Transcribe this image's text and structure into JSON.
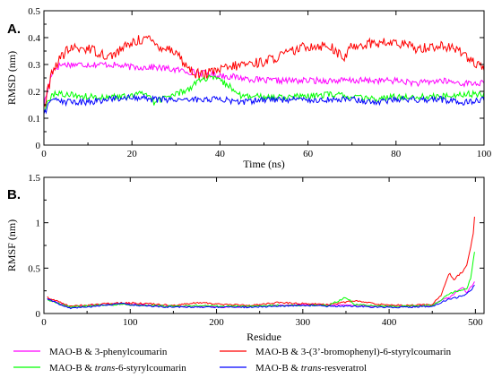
{
  "chart_data": [
    {
      "type": "line",
      "panel_label": "A.",
      "xlabel": "Time (ns)",
      "ylabel": "RMSD (nm)",
      "xlim": [
        0,
        100
      ],
      "ylim": [
        0,
        0.5
      ],
      "xticks": [
        0,
        20,
        40,
        60,
        80,
        100
      ],
      "yticks": [
        0,
        0.1,
        0.2,
        0.3,
        0.4,
        0.5
      ],
      "xtick_labels": [
        "0",
        "20",
        "40",
        "60",
        "80",
        "100"
      ],
      "ytick_labels": [
        "0",
        "0.1",
        "0.2",
        "0.3",
        "0.4",
        "0.5"
      ],
      "series": [
        {
          "name": "MAO-B & 3-phenylcoumarin",
          "color": "#ff00ff",
          "x": [
            0,
            2,
            4,
            6,
            10,
            15,
            20,
            25,
            30,
            35,
            40,
            45,
            50,
            55,
            60,
            65,
            70,
            75,
            80,
            85,
            90,
            95,
            100
          ],
          "y": [
            0.15,
            0.28,
            0.3,
            0.3,
            0.3,
            0.3,
            0.29,
            0.29,
            0.28,
            0.27,
            0.26,
            0.25,
            0.24,
            0.24,
            0.24,
            0.24,
            0.24,
            0.24,
            0.24,
            0.23,
            0.24,
            0.23,
            0.23
          ]
        },
        {
          "name": "MAO-B & 3-(3'-bromophenyl)-6-styrylcoumarin",
          "color": "#ff0000",
          "x": [
            0,
            2,
            4,
            6,
            10,
            15,
            20,
            23,
            26,
            30,
            32,
            34,
            36,
            40,
            45,
            50,
            55,
            60,
            65,
            68,
            70,
            75,
            80,
            85,
            90,
            95,
            98,
            100
          ],
          "y": [
            0.14,
            0.28,
            0.33,
            0.36,
            0.36,
            0.33,
            0.38,
            0.4,
            0.37,
            0.35,
            0.3,
            0.27,
            0.26,
            0.28,
            0.3,
            0.31,
            0.34,
            0.37,
            0.37,
            0.32,
            0.37,
            0.38,
            0.38,
            0.36,
            0.37,
            0.35,
            0.3,
            0.28
          ]
        },
        {
          "name": "MAO-B & trans-6-styrylcoumarin",
          "color": "#00ff00",
          "x": [
            0,
            2,
            5,
            10,
            15,
            20,
            23,
            25,
            28,
            30,
            33,
            35,
            38,
            40,
            43,
            45,
            50,
            55,
            60,
            65,
            70,
            75,
            80,
            85,
            90,
            95,
            100
          ],
          "y": [
            0.13,
            0.19,
            0.19,
            0.18,
            0.18,
            0.18,
            0.2,
            0.16,
            0.18,
            0.19,
            0.21,
            0.24,
            0.25,
            0.24,
            0.21,
            0.18,
            0.18,
            0.18,
            0.18,
            0.19,
            0.18,
            0.17,
            0.18,
            0.18,
            0.18,
            0.19,
            0.19
          ]
        },
        {
          "name": "MAO-B & trans-resveratrol",
          "color": "#0000ff",
          "x": [
            0,
            2,
            5,
            10,
            15,
            20,
            25,
            30,
            35,
            40,
            45,
            50,
            55,
            60,
            65,
            70,
            75,
            80,
            85,
            90,
            95,
            100
          ],
          "y": [
            0.12,
            0.17,
            0.16,
            0.16,
            0.17,
            0.18,
            0.17,
            0.17,
            0.17,
            0.17,
            0.16,
            0.17,
            0.17,
            0.17,
            0.17,
            0.17,
            0.16,
            0.17,
            0.17,
            0.17,
            0.16,
            0.17
          ]
        }
      ]
    },
    {
      "type": "line",
      "panel_label": "B.",
      "xlabel": "Residue",
      "ylabel": "RMSF (nm)",
      "xlim": [
        0,
        510
      ],
      "ylim": [
        0,
        1.5
      ],
      "xticks": [
        0,
        100,
        200,
        300,
        400,
        500
      ],
      "yticks": [
        0,
        0.5,
        1,
        1.5
      ],
      "xtick_labels": [
        "0",
        "100",
        "200",
        "300",
        "400",
        "500"
      ],
      "ytick_labels": [
        "0",
        "0.5",
        "1",
        "1.5"
      ],
      "series": [
        {
          "name": "MAO-B & 3-phenylcoumarin",
          "color": "#ff00ff",
          "x": [
            4,
            30,
            60,
            90,
            120,
            150,
            180,
            210,
            240,
            270,
            300,
            330,
            360,
            390,
            420,
            450,
            460,
            470,
            480,
            485,
            490,
            495,
            500
          ],
          "y": [
            0.16,
            0.07,
            0.09,
            0.11,
            0.09,
            0.08,
            0.08,
            0.07,
            0.08,
            0.09,
            0.1,
            0.09,
            0.09,
            0.08,
            0.08,
            0.09,
            0.14,
            0.18,
            0.25,
            0.3,
            0.22,
            0.3,
            0.35
          ]
        },
        {
          "name": "MAO-B & 3-(3'-bromophenyl)-6-styrylcoumarin",
          "color": "#ff0000",
          "x": [
            4,
            30,
            60,
            90,
            120,
            150,
            180,
            210,
            240,
            270,
            300,
            330,
            360,
            390,
            420,
            450,
            460,
            465,
            470,
            475,
            480,
            485,
            490,
            495,
            498,
            500
          ],
          "y": [
            0.18,
            0.08,
            0.1,
            0.12,
            0.11,
            0.09,
            0.12,
            0.1,
            0.09,
            0.12,
            0.11,
            0.1,
            0.14,
            0.1,
            0.09,
            0.1,
            0.2,
            0.33,
            0.45,
            0.36,
            0.42,
            0.46,
            0.52,
            0.75,
            0.9,
            1.2
          ]
        },
        {
          "name": "MAO-B & trans-6-styrylcoumarin",
          "color": "#00ff00",
          "x": [
            4,
            30,
            60,
            90,
            120,
            150,
            180,
            210,
            240,
            270,
            300,
            330,
            350,
            360,
            390,
            420,
            450,
            460,
            470,
            480,
            490,
            495,
            500
          ],
          "y": [
            0.15,
            0.07,
            0.09,
            0.1,
            0.09,
            0.08,
            0.09,
            0.08,
            0.08,
            0.09,
            0.09,
            0.09,
            0.18,
            0.1,
            0.08,
            0.08,
            0.09,
            0.15,
            0.22,
            0.25,
            0.28,
            0.4,
            0.76
          ]
        },
        {
          "name": "MAO-B & trans-resveratrol",
          "color": "#0000ff",
          "x": [
            4,
            30,
            60,
            90,
            120,
            150,
            180,
            210,
            240,
            270,
            300,
            330,
            360,
            390,
            420,
            450,
            460,
            470,
            480,
            490,
            495,
            500
          ],
          "y": [
            0.16,
            0.06,
            0.08,
            0.11,
            0.08,
            0.07,
            0.07,
            0.07,
            0.07,
            0.08,
            0.09,
            0.08,
            0.08,
            0.07,
            0.07,
            0.08,
            0.12,
            0.16,
            0.18,
            0.22,
            0.26,
            0.32
          ]
        }
      ]
    }
  ],
  "legend": [
    {
      "prefix": "MAO-B & ",
      "italic": "",
      "suffix": "3-phenylcoumarin",
      "color": "#ff00ff"
    },
    {
      "prefix": "MAO-B & ",
      "italic": "",
      "suffix": "3-(3’-bromophenyl)-6-styrylcoumarin",
      "color": "#ff0000"
    },
    {
      "prefix": "MAO-B & ",
      "italic": "trans",
      "suffix": "-6-styrylcoumarin",
      "color": "#00ff00"
    },
    {
      "prefix": "MAO-B & ",
      "italic": "trans",
      "suffix": "-resveratrol",
      "color": "#0000ff"
    }
  ]
}
